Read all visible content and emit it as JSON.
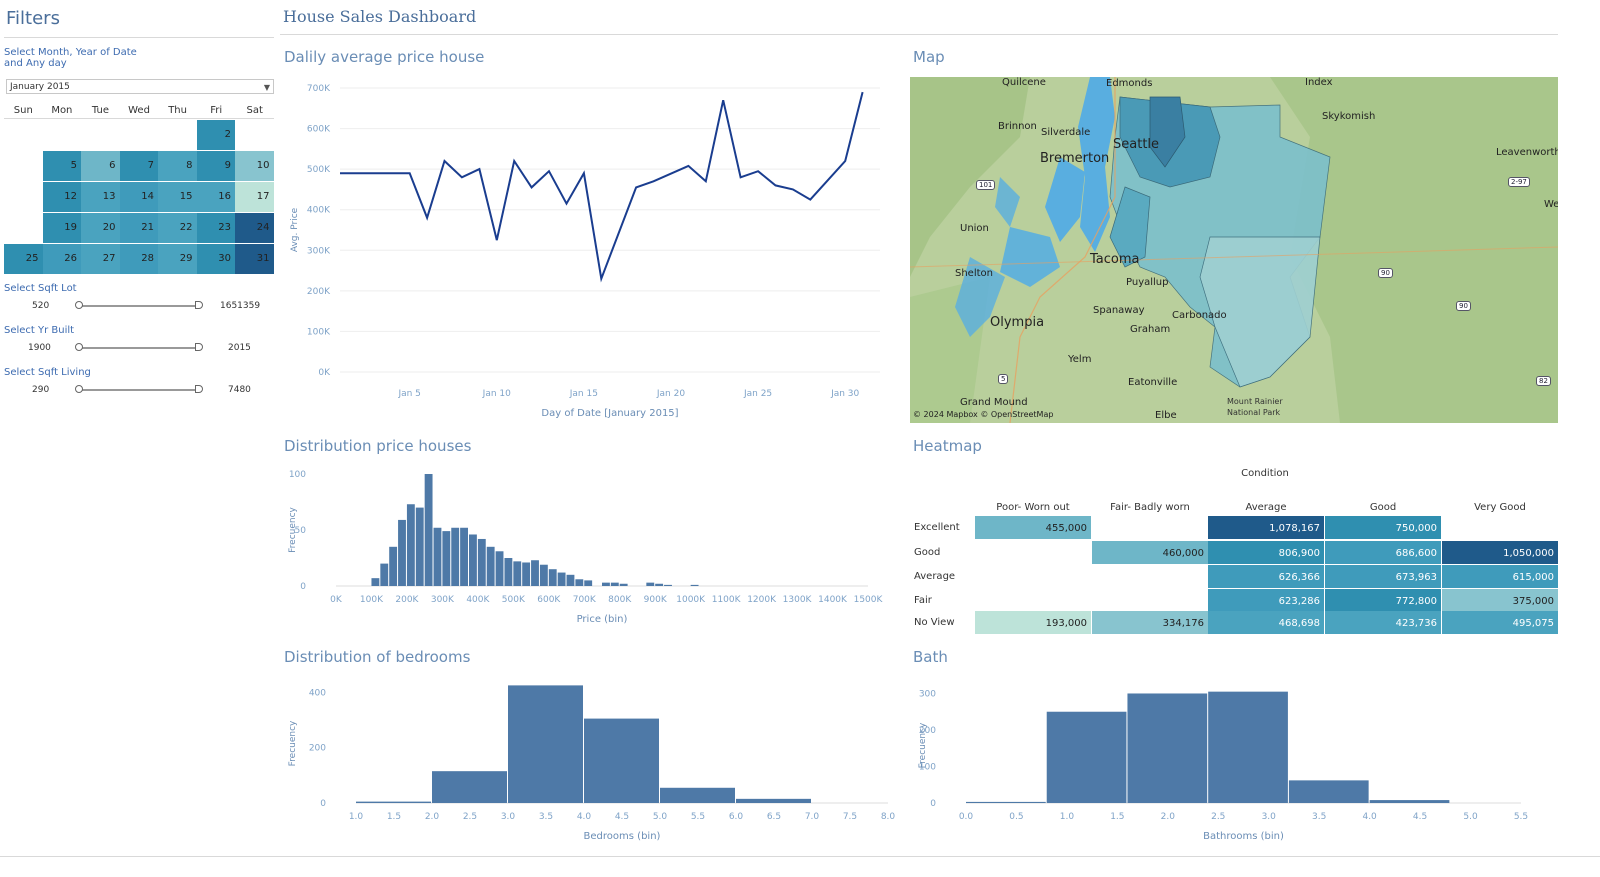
{
  "filters": {
    "title": "Filters",
    "month_label_line1": "Select Month, Year of Date",
    "month_label_line2": "and Any day",
    "month_value": "January 2015",
    "days_of_week": [
      "Sun",
      "Mon",
      "Tue",
      "Wed",
      "Thu",
      "Fri",
      "Sat"
    ],
    "calendar": [
      {
        "day": "2",
        "col": 5,
        "row": 0,
        "color": "#2f8fb0"
      },
      {
        "day": "5",
        "col": 1,
        "row": 1,
        "color": "#2f8fb0"
      },
      {
        "day": "6",
        "col": 2,
        "row": 1,
        "color": "#6eb6c8"
      },
      {
        "day": "7",
        "col": 3,
        "row": 1,
        "color": "#2f8fb0"
      },
      {
        "day": "8",
        "col": 4,
        "row": 1,
        "color": "#4aa3bf"
      },
      {
        "day": "9",
        "col": 5,
        "row": 1,
        "color": "#2f8fb0"
      },
      {
        "day": "10",
        "col": 6,
        "row": 1,
        "color": "#88c4cf"
      },
      {
        "day": "12",
        "col": 1,
        "row": 2,
        "color": "#2f8fb0"
      },
      {
        "day": "13",
        "col": 2,
        "row": 2,
        "color": "#4aa3bf"
      },
      {
        "day": "14",
        "col": 3,
        "row": 2,
        "color": "#3f9bbb"
      },
      {
        "day": "15",
        "col": 4,
        "row": 2,
        "color": "#4aa3bf"
      },
      {
        "day": "16",
        "col": 5,
        "row": 2,
        "color": "#4aa3bf"
      },
      {
        "day": "17",
        "col": 6,
        "row": 2,
        "color": "#bde3d9"
      },
      {
        "day": "19",
        "col": 1,
        "row": 3,
        "color": "#2f8fb0"
      },
      {
        "day": "20",
        "col": 2,
        "row": 3,
        "color": "#4aa3bf"
      },
      {
        "day": "21",
        "col": 3,
        "row": 3,
        "color": "#3f9bbb"
      },
      {
        "day": "22",
        "col": 4,
        "row": 3,
        "color": "#4aa3bf"
      },
      {
        "day": "23",
        "col": 5,
        "row": 3,
        "color": "#2f8fb0"
      },
      {
        "day": "24",
        "col": 6,
        "row": 3,
        "color": "#1f5a8a"
      },
      {
        "day": "25",
        "col": 0,
        "row": 4,
        "color": "#2f8fb0"
      },
      {
        "day": "26",
        "col": 1,
        "row": 4,
        "color": "#3f9bbb"
      },
      {
        "day": "27",
        "col": 2,
        "row": 4,
        "color": "#4aa3bf"
      },
      {
        "day": "28",
        "col": 3,
        "row": 4,
        "color": "#3f9bbb"
      },
      {
        "day": "29",
        "col": 4,
        "row": 4,
        "color": "#4aa3bf"
      },
      {
        "day": "30",
        "col": 5,
        "row": 4,
        "color": "#2f8fb0"
      },
      {
        "day": "31",
        "col": 6,
        "row": 4,
        "color": "#1f5a8a"
      }
    ],
    "sqft_lot": {
      "label": "Select Sqft Lot",
      "min": "520",
      "max": "1651359"
    },
    "yr_built": {
      "label": "Select Yr Built",
      "min": "1900",
      "max": "2015"
    },
    "sqft_living": {
      "label": "Select Sqft Living",
      "min": "290",
      "max": "7480"
    }
  },
  "dashboard_title": "House Sales Dashboard",
  "line_panel": {
    "title": "Dalily average price house"
  },
  "map_panel": {
    "title": "Map",
    "attribution": "© 2024 Mapbox © OpenStreetMap",
    "cities": [
      {
        "name": "Quilcene",
        "big": false
      },
      {
        "name": "Edmonds",
        "big": false
      },
      {
        "name": "Index",
        "big": false
      },
      {
        "name": "Brinnon",
        "big": false
      },
      {
        "name": "Silverdale",
        "big": false
      },
      {
        "name": "Bremerton",
        "big": true
      },
      {
        "name": "Seattle",
        "big": true
      },
      {
        "name": "Skykomish",
        "big": false
      },
      {
        "name": "Leavenworth",
        "big": false
      },
      {
        "name": "Union",
        "big": false
      },
      {
        "name": "Tacoma",
        "big": true
      },
      {
        "name": "Shelton",
        "big": false
      },
      {
        "name": "Puyallup",
        "big": false
      },
      {
        "name": "Olympia",
        "big": true
      },
      {
        "name": "Spanaway",
        "big": false
      },
      {
        "name": "Graham",
        "big": false
      },
      {
        "name": "Carbonado",
        "big": false
      },
      {
        "name": "Yelm",
        "big": false
      },
      {
        "name": "Eatonville",
        "big": false
      },
      {
        "name": "Grand Mound",
        "big": false
      },
      {
        "name": "Elbe",
        "big": false
      },
      {
        "name": "Mount Rainier",
        "big": false
      },
      {
        "name": "National Park",
        "big": false
      },
      {
        "name": "We",
        "big": false
      }
    ],
    "shields": [
      "101",
      "2-97",
      "5",
      "90",
      "90",
      "82"
    ]
  },
  "dist_price_panel": {
    "title": "Distribution price houses"
  },
  "heatmap_panel": {
    "title": "Heatmap",
    "column_title": "Condition",
    "columns": [
      "Poor- Worn out",
      "Fair- Badly worn",
      "Average",
      "Good",
      "Very Good"
    ],
    "rows": [
      {
        "label": "Excellent",
        "cells": [
          {
            "v": "455,000",
            "c": "#6eb6c8"
          },
          {
            "v": "",
            "c": ""
          },
          {
            "v": "1,078,167",
            "c": "#1f5a8a"
          },
          {
            "v": "750,000",
            "c": "#2f8fb0"
          },
          {
            "v": "",
            "c": ""
          }
        ]
      },
      {
        "label": "Good",
        "cells": [
          {
            "v": "",
            "c": ""
          },
          {
            "v": "460,000",
            "c": "#6eb6c8"
          },
          {
            "v": "806,900",
            "c": "#2f8fb0"
          },
          {
            "v": "686,600",
            "c": "#3f9bbb"
          },
          {
            "v": "1,050,000",
            "c": "#1f5a8a"
          }
        ]
      },
      {
        "label": "Average",
        "cells": [
          {
            "v": "",
            "c": ""
          },
          {
            "v": "",
            "c": ""
          },
          {
            "v": "626,366",
            "c": "#3f9bbb"
          },
          {
            "v": "673,963",
            "c": "#3f9bbb"
          },
          {
            "v": "615,000",
            "c": "#3f9bbb"
          }
        ]
      },
      {
        "label": "Fair",
        "cells": [
          {
            "v": "",
            "c": ""
          },
          {
            "v": "",
            "c": ""
          },
          {
            "v": "623,286",
            "c": "#3f9bbb"
          },
          {
            "v": "772,800",
            "c": "#2f8fb0"
          },
          {
            "v": "375,000",
            "c": "#88c4cf"
          }
        ]
      },
      {
        "label": "No View",
        "cells": [
          {
            "v": "193,000",
            "c": "#bde3d9"
          },
          {
            "v": "334,176",
            "c": "#88c4cf"
          },
          {
            "v": "468,698",
            "c": "#4aa3bf"
          },
          {
            "v": "423,736",
            "c": "#4aa3bf"
          },
          {
            "v": "495,075",
            "c": "#4aa3bf"
          }
        ]
      }
    ]
  },
  "bedrooms_panel": {
    "title": "Distribution of bedrooms"
  },
  "bath_panel": {
    "title": "Bath"
  },
  "chart_data": [
    {
      "id": "line",
      "type": "line",
      "x": [
        1,
        2,
        3,
        4,
        5,
        6,
        7,
        8,
        9,
        10,
        11,
        12,
        13,
        14,
        15,
        16,
        17,
        18,
        19,
        20,
        21,
        22,
        23,
        24,
        25,
        26,
        27,
        28,
        29,
        30,
        31
      ],
      "values": [
        490000,
        null,
        null,
        null,
        490000,
        380000,
        520000,
        480000,
        500000,
        325000,
        520000,
        455000,
        495000,
        415000,
        490000,
        230000,
        null,
        455000,
        470000,
        null,
        508000,
        470000,
        670000,
        480000,
        495000,
        460000,
        450000,
        425000,
        null,
        520000,
        690000
      ],
      "xticks": [
        "Jan 5",
        "Jan 10",
        "Jan 15",
        "Jan 20",
        "Jan 25",
        "Jan 30"
      ],
      "xtick_pos": [
        5,
        10,
        15,
        20,
        25,
        30
      ],
      "yticks": [
        "0K",
        "100K",
        "200K",
        "300K",
        "400K",
        "500K",
        "600K",
        "700K"
      ],
      "xlabel": "Day of Date [January 2015]",
      "ylabel": "Avg. Price",
      "ylim": [
        0,
        700000
      ],
      "xlim": [
        1,
        32
      ],
      "color": "#1a3d8f"
    },
    {
      "id": "price",
      "type": "bar",
      "bin_start": 100000,
      "bin_width": 25000,
      "values": [
        7,
        20,
        35,
        59,
        73,
        70,
        100,
        52,
        49,
        52,
        52,
        46,
        42,
        35,
        31,
        25,
        22,
        21,
        23,
        19,
        15,
        12,
        10,
        6,
        5,
        0,
        3,
        3,
        2,
        0,
        0,
        3,
        2,
        1,
        0,
        0,
        1
      ],
      "xticks": [
        "0K",
        "100K",
        "200K",
        "300K",
        "400K",
        "500K",
        "600K",
        "700K",
        "800K",
        "900K",
        "1000K",
        "1100K",
        "1200K",
        "1300K",
        "1400K",
        "1500K"
      ],
      "xlim": [
        0,
        1500000
      ],
      "ylim": [
        0,
        100
      ],
      "yticks": [
        "0",
        "50",
        "100"
      ],
      "xlabel": "Price (bin)",
      "ylabel": "Frecuency",
      "color": "#4e79a7"
    },
    {
      "id": "bedrooms",
      "type": "bar",
      "bin_start": 0,
      "bin_width": 1,
      "values": [
        0,
        5,
        115,
        425,
        305,
        55,
        15,
        0
      ],
      "xticks": [
        "1.0",
        "1.5",
        "2.0",
        "2.5",
        "3.0",
        "3.5",
        "4.0",
        "4.5",
        "5.0",
        "5.5",
        "6.0",
        "6.5",
        "7.0",
        "7.5",
        "8.0"
      ],
      "xlim": [
        1,
        8
      ],
      "ylim": [
        0,
        430
      ],
      "yticks": [
        "0",
        "200",
        "400"
      ],
      "xlabel": "Bedrooms (bin)",
      "ylabel": "Frecuency",
      "color": "#4e79a7"
    },
    {
      "id": "bath",
      "type": "bar",
      "bin_start": 0,
      "bin_width": 0.8,
      "values": [
        3,
        250,
        300,
        305,
        62,
        8
      ],
      "xticks": [
        "0.0",
        "0.5",
        "1.0",
        "1.5",
        "2.0",
        "2.5",
        "3.0",
        "3.5",
        "4.0",
        "4.5",
        "5.0",
        "5.5"
      ],
      "xlim": [
        0,
        5.5
      ],
      "ylim": [
        0,
        315
      ],
      "yticks": [
        "0",
        "100",
        "200",
        "300"
      ],
      "xlabel": "Bathrooms (bin)",
      "ylabel": "Frecuency",
      "color": "#4e79a7"
    }
  ]
}
